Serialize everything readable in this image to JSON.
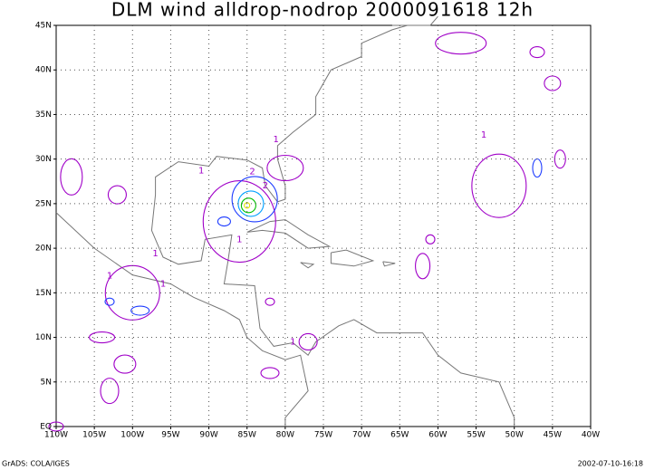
{
  "map": {
    "title": "DLM wind alldrop-nodrop 2000091618 12h",
    "xticks": [
      {
        "value": -110,
        "label": "110W"
      },
      {
        "value": -105,
        "label": "105W"
      },
      {
        "value": -100,
        "label": "100W"
      },
      {
        "value": -95,
        "label": "95W"
      },
      {
        "value": -90,
        "label": "90W"
      },
      {
        "value": -85,
        "label": "85W"
      },
      {
        "value": -80,
        "label": "80W"
      },
      {
        "value": -75,
        "label": "75W"
      },
      {
        "value": -70,
        "label": "70W"
      },
      {
        "value": -65,
        "label": "65W"
      },
      {
        "value": -60,
        "label": "60W"
      },
      {
        "value": -55,
        "label": "55W"
      },
      {
        "value": -50,
        "label": "50W"
      },
      {
        "value": -45,
        "label": "45W"
      },
      {
        "value": -40,
        "label": "40W"
      }
    ],
    "yticks": [
      {
        "value": 0,
        "label": "EQ"
      },
      {
        "value": 5,
        "label": "5N"
      },
      {
        "value": 10,
        "label": "10N"
      },
      {
        "value": 15,
        "label": "15N"
      },
      {
        "value": 20,
        "label": "20N"
      },
      {
        "value": 25,
        "label": "25N"
      },
      {
        "value": 30,
        "label": "30N"
      },
      {
        "value": 35,
        "label": "35N"
      },
      {
        "value": 40,
        "label": "40N"
      },
      {
        "value": 45,
        "label": "45N"
      }
    ],
    "xlim": [
      -110,
      -40
    ],
    "ylim": [
      0,
      45
    ],
    "grid": true,
    "contour_labels": [
      "1",
      "1",
      "2",
      "2",
      "1",
      "1",
      "1",
      "1",
      "1",
      "1"
    ],
    "footer_left": "GrADS: COLA/IGES",
    "footer_right": "2002-07-10-16:18"
  }
}
